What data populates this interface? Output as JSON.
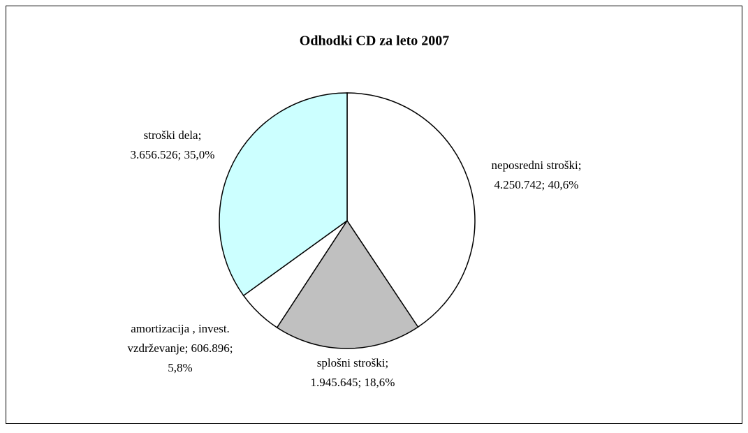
{
  "chart_data": {
    "type": "pie",
    "title": "Odhodki CD za leto 2007",
    "values": [
      4250742,
      1945645,
      606896,
      3656526
    ],
    "value_labels": [
      [
        "neposredni stroški;",
        "4.250.742; 40,6%"
      ],
      [
        "splošni stroški;",
        "1.945.645; 18,6%"
      ],
      [
        "amortizacija , invest.",
        "vzdrževanje; 606.896;",
        "5,8%"
      ],
      [
        "stroški dela;",
        "3.656.526; 35,0%"
      ]
    ],
    "colors": [
      "#ffffff",
      "#c0c0c0",
      "#ffffff",
      "#ccffff"
    ]
  }
}
